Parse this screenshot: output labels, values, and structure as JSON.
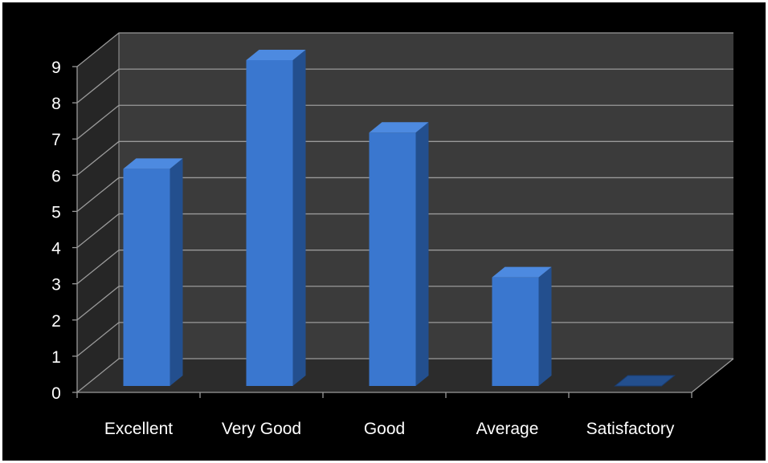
{
  "chart_data": {
    "type": "bar",
    "style": "3d-column",
    "categories": [
      "Excellent",
      "Very Good",
      "Good",
      "Average",
      "Satisfactory"
    ],
    "values": [
      6,
      9,
      7,
      3,
      0
    ],
    "yticks": [
      0,
      1,
      2,
      3,
      4,
      5,
      6,
      7,
      8,
      9
    ],
    "ylim": [
      0,
      9
    ],
    "grid": true,
    "legend": "none",
    "colors": {
      "background": "#000000",
      "back_wall": "#3b3b3b",
      "side_wall": "#262626",
      "floor": "#2c2c2c",
      "grid": "#9a9a9a",
      "bar_front": "#3a77cf",
      "bar_top": "#4d8ae0",
      "bar_side": "#234f8e",
      "text": "#ffffff"
    }
  }
}
